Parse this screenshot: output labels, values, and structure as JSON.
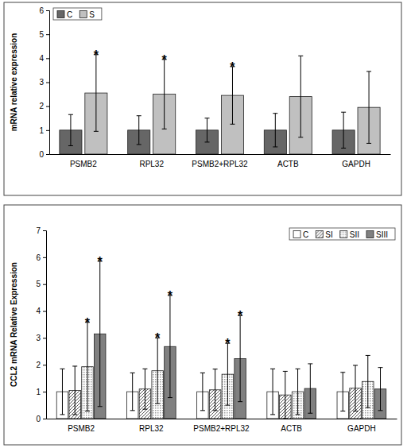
{
  "chart_data": [
    {
      "type": "bar",
      "ylabel": "mRNA relative expression",
      "categories": [
        "PSMB2",
        "RPL32",
        "PSMB2+RPL32",
        "ACTB",
        "GAPDH"
      ],
      "series": [
        {
          "name": "C",
          "color": "#666666",
          "values": [
            1,
            1,
            1,
            1,
            1
          ],
          "errors": [
            0.65,
            0.6,
            0.5,
            0.7,
            0.75
          ]
        },
        {
          "name": "S",
          "color": "#c0c0c0",
          "values": [
            2.55,
            2.5,
            2.45,
            2.4,
            1.95
          ],
          "errors": [
            1.6,
            1.45,
            1.2,
            1.7,
            1.5
          ]
        }
      ],
      "ylim": [
        0,
        6
      ],
      "yticks": [
        0,
        1,
        2,
        3,
        4,
        5,
        6
      ],
      "legend": "top-left",
      "annotations": [
        {
          "text": "*",
          "category": "PSMB2",
          "series": "S"
        },
        {
          "text": "*",
          "category": "RPL32",
          "series": "S"
        },
        {
          "text": "*",
          "category": "PSMB2+RPL32",
          "series": "S"
        }
      ]
    },
    {
      "type": "bar",
      "ylabel": "CCL2 mRNA Relative Expression",
      "categories": [
        "PSMB2",
        "RPL32",
        "PSMB2+RPL32",
        "ACTB",
        "GAPDH"
      ],
      "series": [
        {
          "name": "C",
          "color": "#ffffff",
          "values": [
            1,
            1,
            1,
            1,
            1
          ],
          "errors": [
            0.85,
            0.7,
            0.7,
            0.85,
            0.72
          ]
        },
        {
          "name": "SI",
          "color": "#555555",
          "values": [
            1.05,
            1.1,
            1.07,
            0.88,
            1.13
          ],
          "errors": [
            0.9,
            0.75,
            0.77,
            0.88,
            0.85
          ]
        },
        {
          "name": "SII",
          "color": "#999999",
          "values": [
            1.93,
            1.78,
            1.65,
            1.0,
            1.38
          ],
          "errors": [
            1.65,
            1.22,
            1.15,
            0.85,
            0.97
          ]
        },
        {
          "name": "SIII",
          "color": "#808080",
          "values": [
            3.15,
            2.68,
            2.23,
            1.12,
            1.1
          ],
          "errors": [
            2.7,
            1.9,
            1.6,
            0.92,
            0.8
          ]
        }
      ],
      "ylim": [
        0,
        7
      ],
      "yticks": [
        0,
        1,
        2,
        3,
        4,
        5,
        6,
        7
      ],
      "legend": "top-right",
      "annotations": [
        {
          "text": "*",
          "category": "PSMB2",
          "series": "SII"
        },
        {
          "text": "*",
          "category": "PSMB2",
          "series": "SIII"
        },
        {
          "text": "*",
          "category": "RPL32",
          "series": "SII"
        },
        {
          "text": "*",
          "category": "RPL32",
          "series": "SIII"
        },
        {
          "text": "*",
          "category": "PSMB2+RPL32",
          "series": "SII"
        },
        {
          "text": "*",
          "category": "PSMB2+RPL32",
          "series": "SIII"
        }
      ]
    }
  ]
}
